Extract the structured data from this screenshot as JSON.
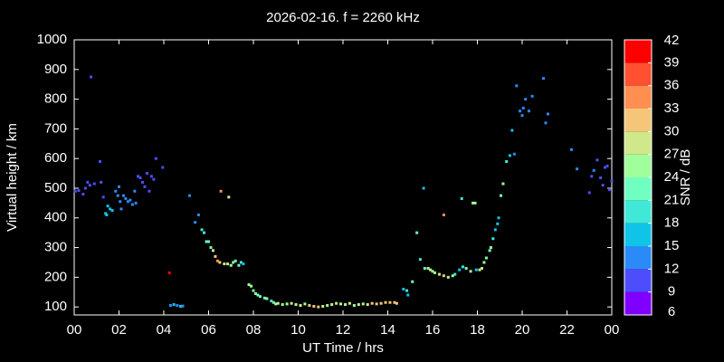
{
  "chart_data": {
    "type": "scatter",
    "title": "2026-02-16. f = 2260 kHz",
    "x_label": "UT Time / hrs",
    "y_label": "Virtual height / km",
    "xlim": [
      0,
      24
    ],
    "xticks": [
      {
        "value": 0,
        "label": "00"
      },
      {
        "value": 2,
        "label": "02"
      },
      {
        "value": 4,
        "label": "04"
      },
      {
        "value": 6,
        "label": "06"
      },
      {
        "value": 8,
        "label": "08"
      },
      10,
      12,
      14,
      16,
      18,
      20,
      22,
      {
        "value": 24,
        "label": "00"
      }
    ],
    "ylim": [
      73,
      1000
    ],
    "yticks": [
      100,
      200,
      300,
      400,
      500,
      600,
      700,
      800,
      900,
      1000
    ],
    "colorbar": {
      "label": "SNR / dB",
      "lim": [
        6,
        42
      ],
      "ticks": [
        6,
        9,
        12,
        15,
        18,
        21,
        24,
        27,
        30,
        33,
        36,
        39,
        42
      ],
      "colors": [
        "#7f00ff",
        "#4d4dfc",
        "#2a8af8",
        "#10c4e8",
        "#40e8d8",
        "#70ffc0",
        "#a0ff9b",
        "#d0e88a",
        "#f5c578",
        "#ff8f50",
        "#ff5030",
        "#ff0000"
      ]
    },
    "x": [
      0.05,
      0.2,
      0.4,
      0.5,
      0.6,
      0.7,
      0.75,
      0.9,
      1.15,
      1.2,
      1.3,
      1.4,
      1.45,
      1.5,
      1.6,
      1.7,
      1.85,
      1.95,
      2.0,
      2.05,
      2.1,
      2.2,
      2.3,
      2.4,
      2.5,
      2.6,
      2.7,
      2.75,
      2.85,
      2.95,
      3.05,
      3.15,
      3.25,
      3.35,
      3.45,
      3.55,
      3.65,
      3.95,
      4.25,
      4.3,
      4.45,
      4.6,
      4.75,
      4.85,
      5.15,
      5.4,
      5.55,
      5.7,
      5.8,
      5.9,
      6.0,
      6.1,
      6.2,
      6.3,
      6.4,
      6.5,
      6.55,
      6.7,
      6.85,
      6.9,
      7.0,
      7.1,
      7.2,
      7.35,
      7.45,
      7.55,
      7.8,
      7.9,
      8.0,
      8.1,
      8.2,
      8.3,
      8.5,
      8.6,
      8.8,
      8.9,
      9.0,
      9.1,
      9.3,
      9.5,
      9.7,
      9.9,
      10.1,
      10.3,
      10.5,
      10.7,
      10.9,
      11.1,
      11.3,
      11.5,
      11.7,
      11.9,
      12.1,
      12.3,
      12.5,
      12.7,
      12.9,
      13.1,
      13.3,
      13.5,
      13.7,
      13.9,
      14.1,
      14.3,
      14.4,
      14.7,
      14.85,
      14.9,
      15.1,
      15.3,
      15.45,
      15.6,
      15.65,
      15.8,
      15.9,
      16.0,
      16.1,
      16.3,
      16.5,
      16.5,
      16.7,
      16.9,
      17.0,
      17.2,
      17.3,
      17.35,
      17.5,
      17.7,
      17.8,
      17.9,
      17.95,
      18.1,
      18.2,
      18.3,
      18.4,
      18.55,
      18.6,
      18.7,
      18.8,
      18.9,
      18.95,
      19.05,
      19.15,
      19.3,
      19.45,
      19.55,
      19.65,
      19.75,
      19.9,
      20.0,
      20.05,
      20.15,
      20.3,
      20.45,
      20.95,
      21.05,
      21.15,
      22.2,
      22.45,
      23.0,
      23.1,
      23.2,
      23.35,
      23.5,
      23.6,
      23.7,
      23.8,
      23.9,
      24.0
    ],
    "values": [
      490,
      492,
      480,
      500,
      520,
      510,
      875,
      515,
      590,
      520,
      470,
      415,
      410,
      440,
      430,
      425,
      490,
      475,
      505,
      455,
      430,
      475,
      465,
      455,
      460,
      445,
      490,
      450,
      540,
      535,
      520,
      505,
      550,
      490,
      540,
      530,
      600,
      570,
      215,
      105,
      108,
      105,
      102,
      103,
      475,
      385,
      410,
      360,
      350,
      320,
      320,
      300,
      290,
      270,
      255,
      250,
      490,
      245,
      245,
      470,
      240,
      250,
      255,
      240,
      250,
      245,
      175,
      170,
      155,
      145,
      140,
      135,
      130,
      128,
      120,
      115,
      110,
      112,
      108,
      110,
      112,
      108,
      105,
      110,
      105,
      102,
      100,
      102,
      105,
      108,
      112,
      110,
      108,
      112,
      105,
      108,
      110,
      108,
      112,
      110,
      112,
      115,
      115,
      115,
      112,
      160,
      155,
      140,
      185,
      350,
      260,
      500,
      230,
      230,
      225,
      220,
      215,
      210,
      205,
      410,
      200,
      205,
      210,
      225,
      465,
      235,
      230,
      220,
      450,
      450,
      225,
      225,
      230,
      250,
      265,
      290,
      300,
      330,
      360,
      380,
      400,
      475,
      515,
      590,
      610,
      695,
      615,
      845,
      760,
      745,
      770,
      800,
      760,
      810,
      870,
      720,
      750,
      630,
      565,
      485,
      540,
      560,
      595,
      535,
      510,
      570,
      575,
      495,
      525
    ],
    "snr": [
      9,
      9,
      9,
      9,
      9,
      9,
      9,
      9,
      9,
      9,
      9,
      15,
      15,
      15,
      15,
      15,
      12,
      12,
      12,
      12,
      12,
      12,
      12,
      12,
      12,
      12,
      12,
      12,
      9,
      9,
      9,
      9,
      9,
      9,
      9,
      9,
      9,
      9,
      39,
      12,
      15,
      12,
      15,
      12,
      12,
      12,
      12,
      18,
      18,
      21,
      21,
      21,
      27,
      30,
      33,
      30,
      33,
      27,
      27,
      27,
      24,
      24,
      21,
      21,
      18,
      15,
      24,
      24,
      21,
      24,
      21,
      21,
      21,
      24,
      18,
      21,
      24,
      27,
      24,
      24,
      27,
      24,
      27,
      24,
      30,
      30,
      30,
      27,
      24,
      27,
      24,
      27,
      24,
      27,
      24,
      27,
      24,
      27,
      30,
      30,
      30,
      30,
      30,
      30,
      30,
      15,
      18,
      15,
      21,
      21,
      18,
      15,
      21,
      24,
      27,
      24,
      24,
      27,
      30,
      33,
      24,
      24,
      18,
      15,
      18,
      18,
      21,
      24,
      24,
      24,
      15,
      27,
      27,
      24,
      21,
      21,
      24,
      18,
      15,
      15,
      15,
      21,
      24,
      18,
      15,
      15,
      12,
      12,
      12,
      12,
      12,
      12,
      12,
      12,
      12,
      12,
      12,
      12,
      12,
      9,
      9,
      12,
      9,
      9,
      9,
      9,
      9,
      9,
      9
    ]
  }
}
